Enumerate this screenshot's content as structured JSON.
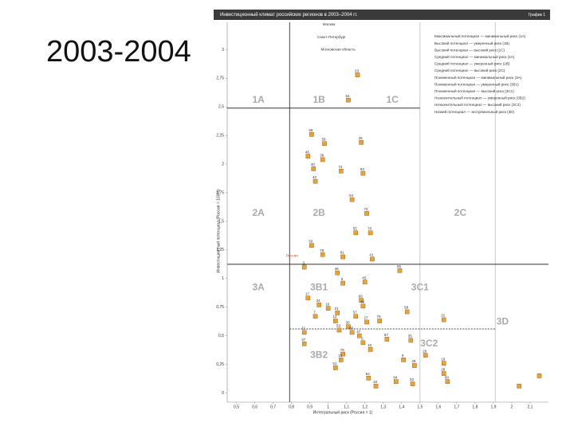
{
  "slide_title": "2003-2004",
  "chart_data": {
    "type": "scatter",
    "title": "Инвестиционный климат российских регионов в 2003–2004 гг.",
    "figure_label": "График 1",
    "x_label": "Интегральный риск (Россия = 1)",
    "y_label": "Инвестиционный потенциал (Россия = 100%)",
    "xlim": [
      0.45,
      2.2
    ],
    "ylim": [
      -0.08,
      3.24
    ],
    "xticks": [
      {
        "value": 0.5,
        "label": "0,5"
      },
      {
        "value": 0.6,
        "label": "0,6"
      },
      {
        "value": 0.7,
        "label": "0,7"
      },
      {
        "value": 0.8,
        "label": "0,8"
      },
      {
        "value": 0.9,
        "label": "0,9"
      },
      1,
      {
        "value": 1.1,
        "label": "1,1"
      },
      {
        "value": 1.2,
        "label": "1,2"
      },
      {
        "value": 1.3,
        "label": "1,3"
      },
      {
        "value": 1.4,
        "label": "1,4"
      },
      {
        "value": 1.5,
        "label": "1,5"
      },
      {
        "value": 1.6,
        "label": "1,6"
      },
      {
        "value": 1.7,
        "label": "1,7"
      },
      {
        "value": 1.8,
        "label": "1,8"
      },
      {
        "value": 1.9,
        "label": "1,9"
      },
      2,
      {
        "value": 2.1,
        "label": "2,1"
      }
    ],
    "yticks": [
      0,
      {
        "value": 0.25,
        "label": "0,25"
      },
      {
        "value": 0.5,
        "label": "0,5"
      },
      {
        "value": 0.75,
        "label": "0,75"
      },
      1,
      {
        "value": 1.25,
        "label": "1,25"
      },
      {
        "value": 1.5,
        "label": "1,5"
      },
      {
        "value": 1.75,
        "label": "1,75"
      },
      2,
      {
        "value": 2.25,
        "label": "2,25"
      },
      {
        "value": 2.5,
        "label": "2,5"
      },
      {
        "value": 2.75,
        "label": "2,75"
      },
      3
    ],
    "dividers_y": [
      2.49,
      1.125
    ],
    "dividers_x": [
      0.79
    ],
    "dashed_y": 0.56,
    "light_x": [
      1.5,
      1.91
    ],
    "zones": [
      {
        "text": "1A",
        "x": 0.62,
        "y": 2.56
      },
      {
        "text": "1B",
        "x": 0.95,
        "y": 2.56
      },
      {
        "text": "1C",
        "x": 1.35,
        "y": 2.56
      },
      {
        "text": "2A",
        "x": 0.62,
        "y": 1.57
      },
      {
        "text": "2B",
        "x": 0.95,
        "y": 1.57
      },
      {
        "text": "2C",
        "x": 1.72,
        "y": 1.57
      },
      {
        "text": "3A",
        "x": 0.62,
        "y": 0.92
      },
      {
        "text": "3B1",
        "x": 0.95,
        "y": 0.92
      },
      {
        "text": "3C1",
        "x": 1.5,
        "y": 0.92
      },
      {
        "text": "3D",
        "x": 1.95,
        "y": 0.62
      },
      {
        "text": "3B2",
        "x": 0.95,
        "y": 0.33
      },
      {
        "text": "3C2",
        "x": 1.55,
        "y": 0.43
      }
    ],
    "annotations": [
      {
        "text": "Москва",
        "x": 0.97,
        "y": 3.22
      },
      {
        "text": "Санкт-Петербург",
        "x": 0.94,
        "y": 3.11
      },
      {
        "text": "Московская область",
        "x": 0.96,
        "y": 3.0
      },
      {
        "text": "Россия",
        "x": 0.77,
        "y": 1.2
      }
    ],
    "legend": [
      "Максимальный потенциал — минимальный риск (1A)",
      "Высокий потенциал — умеренный риск (1B)",
      "Высокий потенциал — высокий риск (1C)",
      "Средний потенциал — минимальный риск (2A)",
      "Средний потенциал — умеренный риск (2B)",
      "Средний потенциал — высокий риск (2C)",
      "Пониженный потенциал — минимальный риск (3A)",
      "Пониженный потенциал — умеренный риск (3B1)",
      "Пониженный потенциал — высокий риск (3C1)",
      "Незначительный потенциал — умеренный риск (3B2)",
      "Незначительный потенциал — высокий риск (3C2)",
      "Низкий потенциал — экстремальный риск (3D)"
    ],
    "color": "#e9a23b",
    "x": [
      1.16,
      1.11,
      0.91,
      0.98,
      1.18,
      0.89,
      0.97,
      0.92,
      1.07,
      1.19,
      0.93,
      1.13,
      1.21,
      1.15,
      1.23,
      0.91,
      0.97,
      1.08,
      1.24,
      0.87,
      1.05,
      1.39,
      1.08,
      1.2,
      0.89,
      1.18,
      0.95,
      1.0,
      1.05,
      1.15,
      1.19,
      0.93,
      1.04,
      1.11,
      1.21,
      1.28,
      1.43,
      1.63,
      1.06,
      1.13,
      1.17,
      0.87,
      1.19,
      1.32,
      1.45,
      0.87,
      1.08,
      1.23,
      1.41,
      1.53,
      1.63,
      1.47,
      1.07,
      1.04,
      1.22,
      1.26,
      1.37,
      1.46,
      1.63,
      1.65,
      2.15,
      2.04
    ],
    "values": [
      2.78,
      2.56,
      2.26,
      2.18,
      2.19,
      2.07,
      2.04,
      1.96,
      1.94,
      1.92,
      1.85,
      1.69,
      1.57,
      1.4,
      1.4,
      1.29,
      1.21,
      1.19,
      1.17,
      1.1,
      1.05,
      1.07,
      0.96,
      0.97,
      0.83,
      0.81,
      0.77,
      0.74,
      0.7,
      0.67,
      0.76,
      0.67,
      0.63,
      0.58,
      0.62,
      0.63,
      0.71,
      0.64,
      0.55,
      0.53,
      0.5,
      0.53,
      0.44,
      0.47,
      0.46,
      0.43,
      0.34,
      0.38,
      0.29,
      0.33,
      0.26,
      0.24,
      0.29,
      0.22,
      0.13,
      0.06,
      0.1,
      0.08,
      0.17,
      0.1,
      0.15,
      0.06
    ],
    "labels": [
      "23",
      "61",
      "66",
      "59",
      "25",
      "48",
      "36",
      "40",
      "74",
      "63",
      "42",
      "54",
      "72",
      "55",
      "70",
      "50",
      "78",
      "81",
      "41",
      "3",
      "39",
      "65",
      "5",
      "45",
      "17",
      "69",
      "34",
      "16",
      "21",
      "57",
      "49",
      "7",
      "12",
      "30",
      "27",
      "76",
      "58",
      "31",
      "53",
      "80",
      "47",
      "11",
      "2",
      "67",
      "35",
      "37",
      "79",
      "10",
      "9",
      "20",
      "19",
      "29",
      "13",
      "51",
      "64",
      "18",
      "84",
      "52",
      "28",
      "60",
      null,
      null
    ]
  }
}
